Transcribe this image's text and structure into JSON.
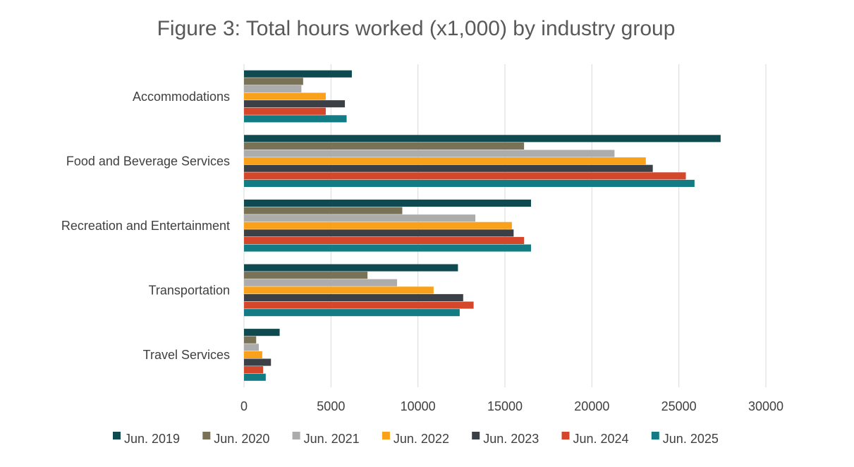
{
  "chart_data": {
    "type": "bar",
    "orientation": "horizontal",
    "title": "Figure 3: Total hours worked (x1,000) by industry group",
    "categories": [
      "Accommodations",
      "Food and Beverage Services",
      "Recreation and Entertainment",
      "Transportation",
      "Travel Services"
    ],
    "xlim": [
      0,
      30000
    ],
    "xticks": [
      0,
      5000,
      10000,
      15000,
      20000,
      25000,
      30000
    ],
    "grid": true,
    "legend_position": "bottom",
    "series": [
      {
        "name": "Jun. 2019",
        "color": "#0e4a4f",
        "values": [
          6200,
          27400,
          16500,
          12300,
          2050
        ]
      },
      {
        "name": "Jun. 2020",
        "color": "#7a7257",
        "values": [
          3400,
          16100,
          9100,
          7100,
          700
        ]
      },
      {
        "name": "Jun. 2021",
        "color": "#acacac",
        "values": [
          3300,
          21300,
          13300,
          8800,
          850
        ]
      },
      {
        "name": "Jun. 2022",
        "color": "#f9a11b",
        "values": [
          4700,
          23100,
          15400,
          10900,
          1050
        ]
      },
      {
        "name": "Jun. 2023",
        "color": "#3a4045",
        "values": [
          5800,
          23500,
          15500,
          12600,
          1550
        ]
      },
      {
        "name": "Jun. 2024",
        "color": "#d4472b",
        "values": [
          4700,
          25400,
          16100,
          13200,
          1100
        ]
      },
      {
        "name": "Jun. 2025",
        "color": "#127b83",
        "values": [
          5900,
          25900,
          16500,
          12400,
          1250
        ]
      }
    ]
  }
}
